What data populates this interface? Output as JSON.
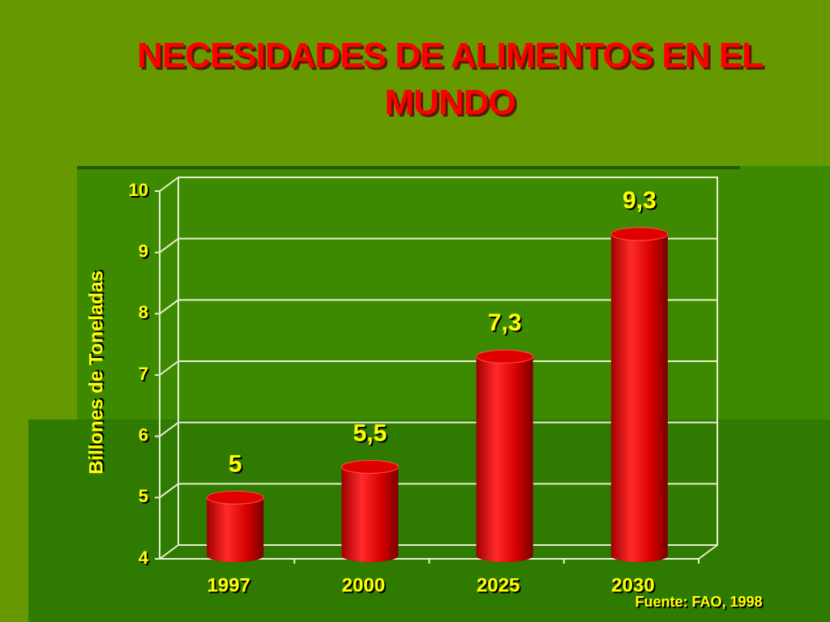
{
  "chart_data": {
    "type": "bar",
    "title": "NECESIDADES DE ALIMENTOS EN EL MUNDO",
    "y_label": "Billones de Toneladas",
    "categories": [
      "1997",
      "2000",
      "2025",
      "2030"
    ],
    "values": [
      5,
      5.5,
      7.3,
      9.3
    ],
    "value_labels": [
      "5",
      "5,5",
      "7,3",
      "9,3"
    ],
    "color": "#e00000",
    "ylim": [
      4,
      10
    ],
    "yticks": [
      4,
      5,
      6,
      7,
      8,
      9,
      10
    ],
    "grid": true,
    "source": "Fuente: FAO, 1998"
  }
}
